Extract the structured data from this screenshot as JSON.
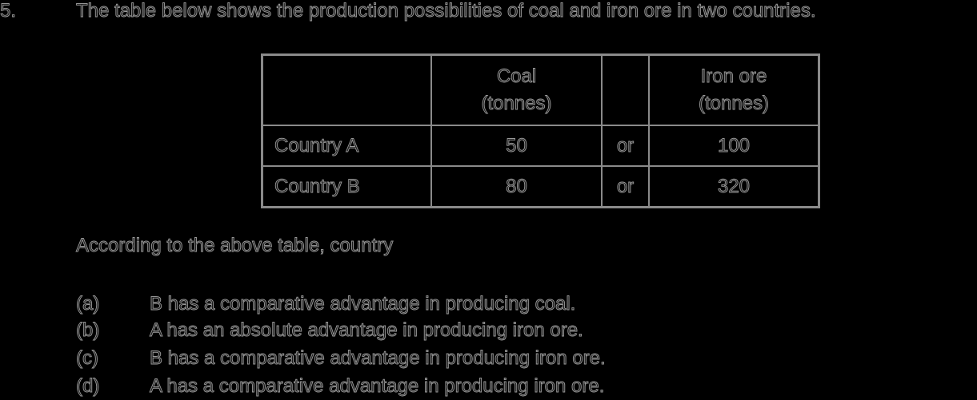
{
  "question": {
    "number": "5.",
    "text": "The table below shows the production possibilities of coal and iron ore in two countries."
  },
  "table": {
    "headers": {
      "blank": "",
      "coal_line1": "Coal",
      "coal_line2": "(tonnes)",
      "or_blank": "",
      "iron_line1": "Iron ore",
      "iron_line2": "(tonnes)"
    },
    "rows": [
      {
        "country": "Country A",
        "coal": "50",
        "or": "or",
        "iron_ore": "100"
      },
      {
        "country": "Country B",
        "coal": "80",
        "or": "or",
        "iron_ore": "320"
      }
    ]
  },
  "stem": "According to the above table, country",
  "options": [
    {
      "label": "(a)",
      "text": "B has a comparative advantage in producing coal."
    },
    {
      "label": "(b)",
      "text": "A has an absolute advantage in producing iron ore."
    },
    {
      "label": "(c)",
      "text": "B has a comparative advantage in producing iron ore."
    },
    {
      "label": "(d)",
      "text": "A has a comparative advantage in producing iron ore."
    }
  ],
  "colors": {
    "background": "#000000",
    "text_fill": "#1a1a1a",
    "text_outline": "#9a9a9a",
    "table_border": "#8a8a8a"
  }
}
